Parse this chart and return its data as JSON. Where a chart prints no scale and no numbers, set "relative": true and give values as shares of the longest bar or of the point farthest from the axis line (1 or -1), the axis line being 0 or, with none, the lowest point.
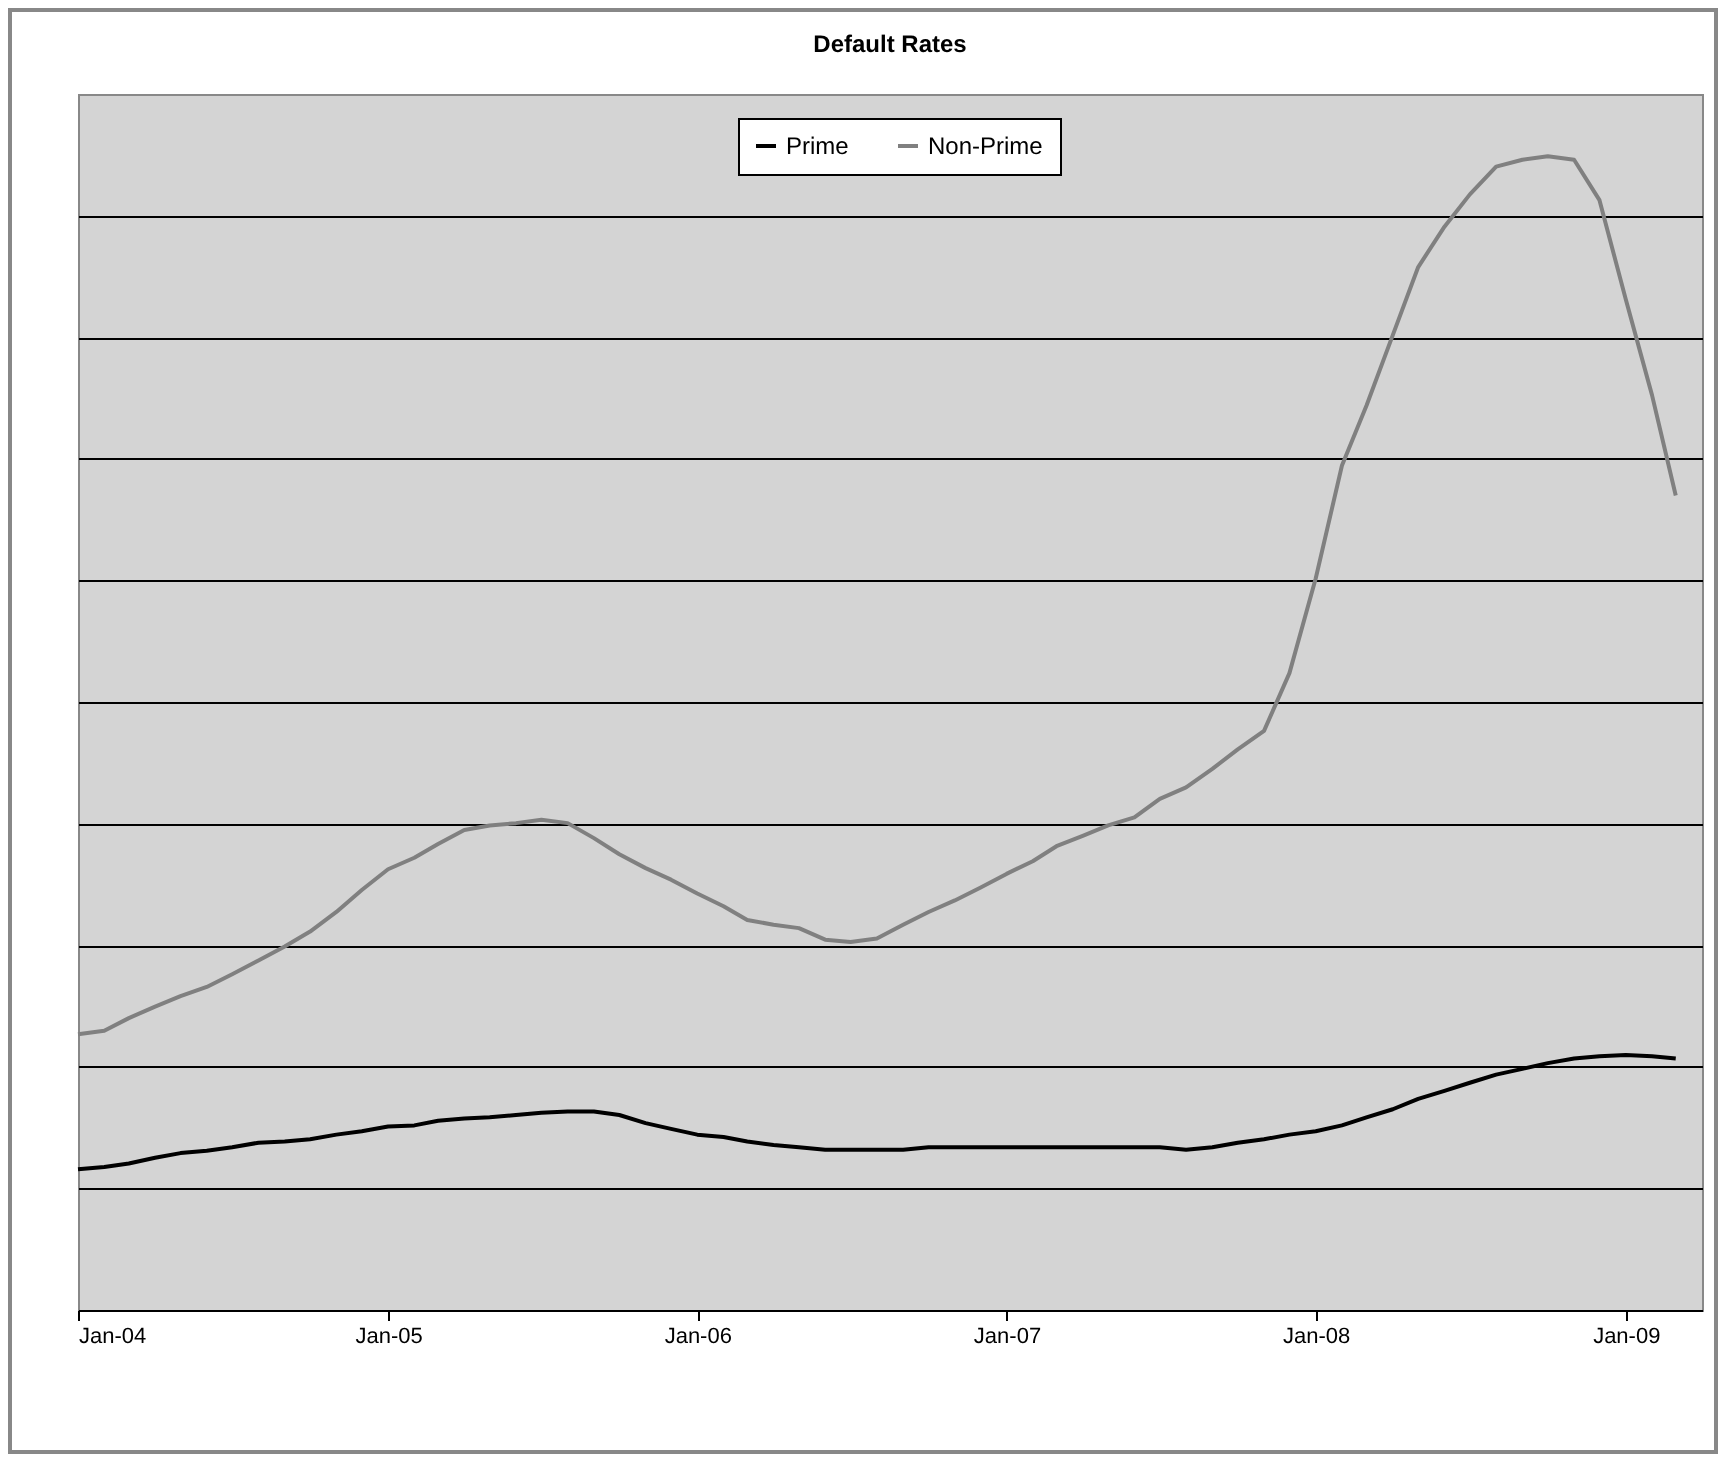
{
  "chart_data": {
    "type": "line",
    "title": "Default Rates",
    "relative": true,
    "grid": "y",
    "legend": "top",
    "x": [
      "2004-01",
      "2004-02",
      "2004-03",
      "2004-04",
      "2004-05",
      "2004-06",
      "2004-07",
      "2004-08",
      "2004-09",
      "2004-10",
      "2004-11",
      "2004-12",
      "2005-01",
      "2005-02",
      "2005-03",
      "2005-04",
      "2005-05",
      "2005-06",
      "2005-07",
      "2005-08",
      "2005-09",
      "2005-10",
      "2005-11",
      "2005-12",
      "2006-01",
      "2006-02",
      "2006-03",
      "2006-04",
      "2006-05",
      "2006-06",
      "2006-07",
      "2006-08",
      "2006-09",
      "2006-10",
      "2006-11",
      "2006-12",
      "2007-01",
      "2007-02",
      "2007-03",
      "2007-04",
      "2007-05",
      "2007-06",
      "2007-07",
      "2007-08",
      "2007-09",
      "2007-10",
      "2007-11",
      "2007-12",
      "2008-01",
      "2008-02",
      "2008-03",
      "2008-04",
      "2008-05",
      "2008-06",
      "2008-07",
      "2008-08",
      "2008-09",
      "2008-10",
      "2008-11",
      "2008-12",
      "2009-01",
      "2009-02",
      "2009-03"
    ],
    "xlim": [
      "2004-01",
      "2009-04"
    ],
    "xticks": [
      {
        "value": "2004-01",
        "label": "Jan-04"
      },
      {
        "value": "2005-01",
        "label": "Jan-05"
      },
      {
        "value": "2006-01",
        "label": "Jan-06"
      },
      {
        "value": "2007-01",
        "label": "Jan-07"
      },
      {
        "value": "2008-01",
        "label": "Jan-08"
      },
      {
        "value": "2009-01",
        "label": "Jan-09"
      }
    ],
    "series": [
      {
        "name": "Prime",
        "color": "#000000",
        "values": [
          0.122,
          0.124,
          0.127,
          0.132,
          0.136,
          0.138,
          0.141,
          0.145,
          0.146,
          0.148,
          0.152,
          0.155,
          0.159,
          0.16,
          0.164,
          0.166,
          0.167,
          0.169,
          0.171,
          0.172,
          0.172,
          0.169,
          0.162,
          0.157,
          0.152,
          0.15,
          0.146,
          0.143,
          0.141,
          0.139,
          0.139,
          0.139,
          0.139,
          0.141,
          0.141,
          0.141,
          0.141,
          0.141,
          0.141,
          0.141,
          0.141,
          0.141,
          0.141,
          0.139,
          0.141,
          0.145,
          0.148,
          0.152,
          0.155,
          0.16,
          0.167,
          0.174,
          0.183,
          0.19,
          0.197,
          0.204,
          0.209,
          0.214,
          0.218,
          0.22,
          0.221,
          0.22,
          0.218
        ]
      },
      {
        "name": "Non-Prime",
        "color": "#808080",
        "values": [
          0.239,
          0.242,
          0.253,
          0.263,
          0.272,
          0.28,
          0.291,
          0.303,
          0.315,
          0.328,
          0.345,
          0.364,
          0.382,
          0.392,
          0.404,
          0.416,
          0.42,
          0.422,
          0.425,
          0.422,
          0.409,
          0.395,
          0.383,
          0.373,
          0.361,
          0.35,
          0.338,
          0.334,
          0.331,
          0.321,
          0.319,
          0.322,
          0.334,
          0.345,
          0.355,
          0.366,
          0.378,
          0.389,
          0.402,
          0.411,
          0.42,
          0.427,
          0.443,
          0.453,
          0.469,
          0.486,
          0.502,
          0.552,
          0.634,
          0.732,
          0.784,
          0.845,
          0.904,
          0.939,
          0.967,
          0.991,
          0.997,
          1,
          0.997,
          0.962,
          0.876,
          0.793,
          0.706
        ]
      }
    ]
  }
}
